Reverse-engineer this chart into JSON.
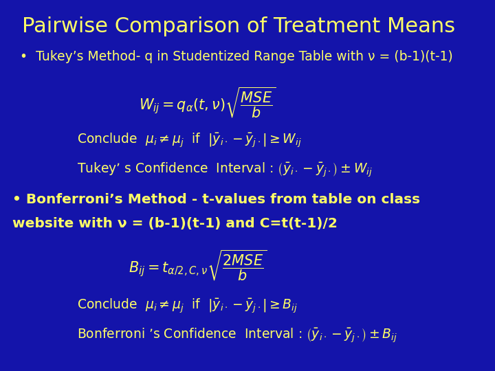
{
  "bg_color": "#1414AA",
  "title": "Pairwise Comparison of Treatment Means",
  "title_color": "#FFFF66",
  "title_fontsize": 22,
  "text_color": "#FFFF66",
  "tukey_line1": "•  Tukey’s Method- q in Studentized Range Table with ν = (b-1)(t-1)",
  "tukey_formula": "$W_{ij} = q_{\\alpha}(t,\\nu)\\sqrt{\\dfrac{MSE}{b}}$",
  "tukey_conclude": "Conclude  $\\mu_i \\neq \\mu_j$  if  $\\left|\\bar{y}_{i\\cdot} - \\bar{y}_{j\\cdot}\\right| \\geq W_{ij}$",
  "tukey_ci": "Tukey’ s Confidence  Interval : $\\left(\\bar{y}_{i\\cdot} - \\bar{y}_{j\\cdot}\\right) \\pm W_{ij}$",
  "bonf_line1": "• Bonferroni’s Method - t-values from table on class",
  "bonf_line2": "website with ν = (b-1)(t-1) and C=t(t-1)/2",
  "bonf_formula": "$B_{ij} = t_{\\alpha/2,C,\\nu}\\sqrt{\\dfrac{2MSE}{b}}$",
  "bonf_conclude": "Conclude  $\\mu_i \\neq \\mu_j$  if  $\\left|\\bar{y}_{i\\cdot} - \\bar{y}_{j\\cdot}\\right| \\geq B_{ij}$",
  "bonf_ci": "Bonferroni ’s Confidence  Interval : $\\left(\\bar{y}_{i\\cdot} - \\bar{y}_{j\\cdot}\\right) \\pm B_{ij}$"
}
